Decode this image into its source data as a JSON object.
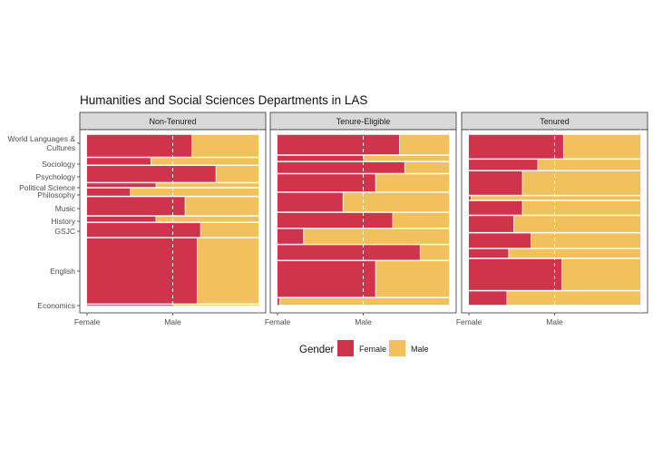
{
  "chart_data": {
    "type": "bar",
    "subtype": "faceted-spine-plot",
    "title": "Humanities and Social Sciences Departments in LAS",
    "xlabel": "",
    "ylabel": "",
    "x_ticks": [
      "Female",
      "Male"
    ],
    "y_ticks": [
      "World Languages &\nCultures",
      "Sociology",
      "Psychology",
      "Political Science",
      "Philosophy",
      "Music",
      "History",
      "GSJC",
      "English",
      "Economics"
    ],
    "legend": {
      "title": "Gender",
      "position": "bottom",
      "entries": [
        {
          "label": "Female",
          "color": "#C8102E"
        },
        {
          "label": "Male",
          "color": "#EDB640"
        }
      ]
    },
    "grid": true,
    "panels": [
      {
        "name": "Non-Tenured",
        "rows": [
          {
            "category": "World Languages & Cultures",
            "weight": 1.6,
            "female_share": 0.61
          },
          {
            "category": "Sociology",
            "weight": 0.55,
            "female_share": 0.37
          },
          {
            "category": "Psychology",
            "weight": 1.2,
            "female_share": 0.75
          },
          {
            "category": "Political Science",
            "weight": 0.35,
            "female_share": 0.4
          },
          {
            "category": "Philosophy",
            "weight": 0.6,
            "female_share": 0.25
          },
          {
            "category": "Music",
            "weight": 1.35,
            "female_share": 0.57
          },
          {
            "category": "History",
            "weight": 0.45,
            "female_share": 0.4
          },
          {
            "category": "GSJC",
            "weight": 1.05,
            "female_share": 0.66
          },
          {
            "category": "English",
            "weight": 4.6,
            "female_share": 0.64
          },
          {
            "category": "Economics",
            "weight": 0.1,
            "female_share": 0.5
          }
        ]
      },
      {
        "name": "Tenure-Eligible",
        "rows": [
          {
            "category": "World Languages & Cultures",
            "weight": 1.3,
            "female_share": 0.71
          },
          {
            "category": "Sociology",
            "weight": 0.4,
            "female_share": 0.5
          },
          {
            "category": "Psychology",
            "weight": 0.75,
            "female_share": 0.74
          },
          {
            "category": "Political Science",
            "weight": 1.15,
            "female_share": 0.57
          },
          {
            "category": "Philosophy",
            "weight": 1.25,
            "female_share": 0.38
          },
          {
            "category": "Music",
            "weight": 1.0,
            "female_share": 0.67
          },
          {
            "category": "History",
            "weight": 1.0,
            "female_share": 0.15
          },
          {
            "category": "GSJC",
            "weight": 1.0,
            "female_share": 0.83
          },
          {
            "category": "English",
            "weight": 2.3,
            "female_share": 0.57
          },
          {
            "category": "Economics",
            "weight": 0.5,
            "female_share": 0.01
          }
        ]
      },
      {
        "name": "Tenured",
        "rows": [
          {
            "category": "World Languages & Cultures",
            "weight": 1.5,
            "female_share": 0.55
          },
          {
            "category": "Sociology",
            "weight": 0.7,
            "female_share": 0.4
          },
          {
            "category": "Psychology",
            "weight": 1.5,
            "female_share": 0.31
          },
          {
            "category": "Political Science",
            "weight": 0.3,
            "female_share": 0.01
          },
          {
            "category": "Philosophy",
            "weight": 0.9,
            "female_share": 0.31
          },
          {
            "category": "Music",
            "weight": 1.05,
            "female_share": 0.26
          },
          {
            "category": "History",
            "weight": 0.95,
            "female_share": 0.36
          },
          {
            "category": "GSJC",
            "weight": 0.6,
            "female_share": 0.23
          },
          {
            "category": "English",
            "weight": 1.95,
            "female_share": 0.54
          },
          {
            "category": "Economics",
            "weight": 0.9,
            "female_share": 0.22
          }
        ]
      }
    ]
  }
}
